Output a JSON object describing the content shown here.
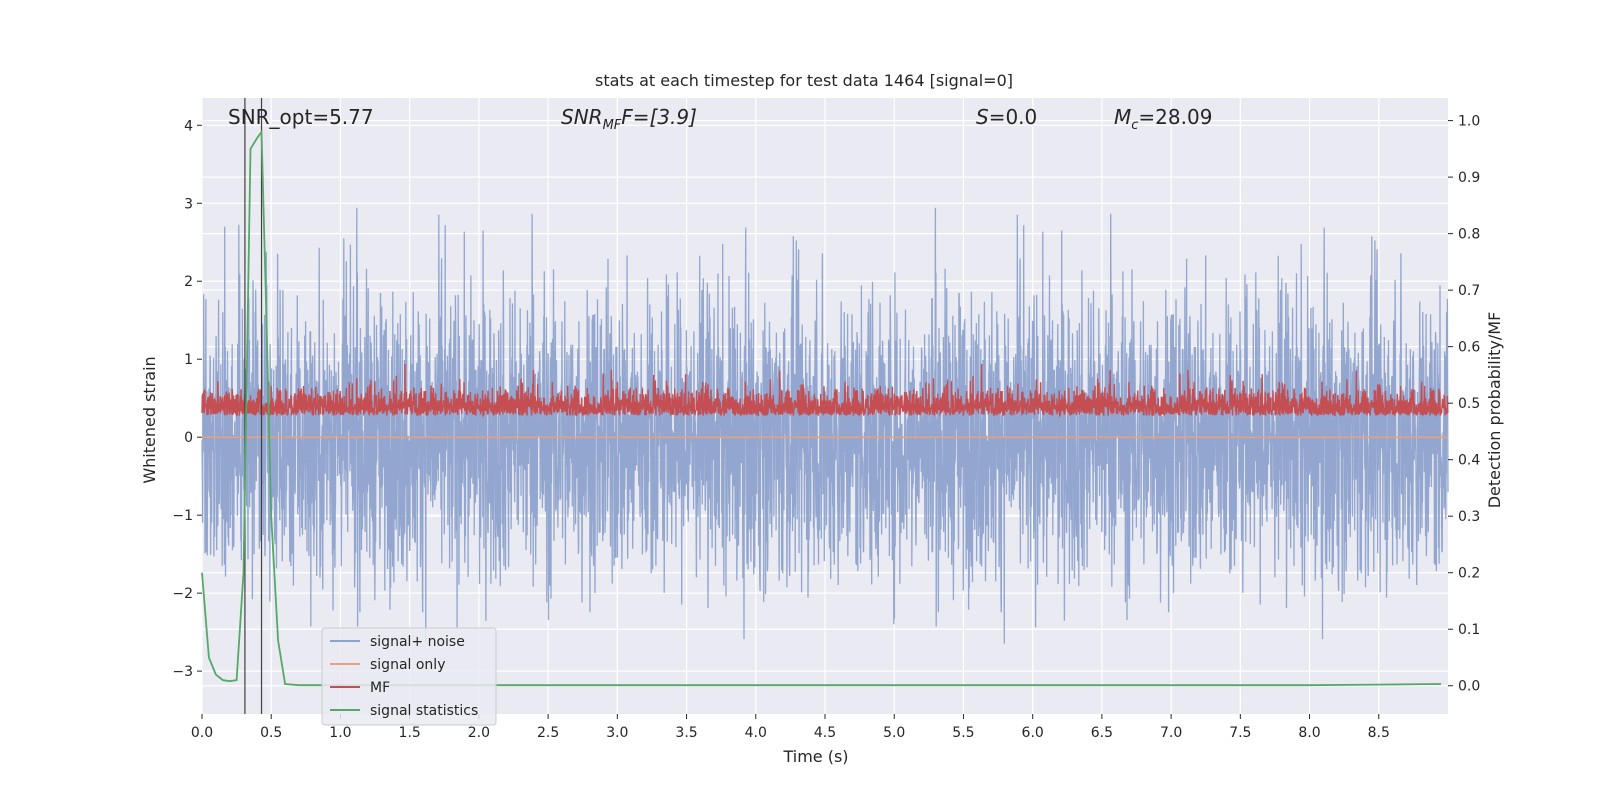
{
  "chart_data": {
    "type": "line",
    "title": "stats at each timestep for test data 1464 [signal=0]",
    "xlabel": "Time (s)",
    "ylabel_left": "Whitened strain",
    "ylabel_right": "Detection probability/MF",
    "xlim": [
      0.0,
      9.0
    ],
    "ylim_left": [
      -3.55,
      4.35
    ],
    "ylim_right": [
      -0.05,
      1.04
    ],
    "x_ticks": [
      "0.0",
      "0.5",
      "1.0",
      "1.5",
      "2.0",
      "2.5",
      "3.0",
      "3.5",
      "4.0",
      "4.5",
      "5.0",
      "5.5",
      "6.0",
      "6.5",
      "7.0",
      "7.5",
      "8.0",
      "8.5"
    ],
    "y_ticks_left": [
      "4",
      "3",
      "2",
      "1",
      "0",
      "−1",
      "−2",
      "−3"
    ],
    "y_ticks_right": [
      "1.0",
      "0.9",
      "0.8",
      "0.7",
      "0.6",
      "0.5",
      "0.4",
      "0.3",
      "0.2",
      "0.1",
      "0.0"
    ],
    "annotations": {
      "snr_opt": "SNR_opt=5.77",
      "snr_mf_base": "SNR",
      "snr_mf_sub": "MF",
      "snr_mf_tail": "F=[3.9]",
      "s_label": "S",
      "s_value": "=0.0",
      "mc_base": "M",
      "mc_sub": "c",
      "mc_value": "=28.09"
    },
    "vlines_x": [
      0.31,
      0.43
    ],
    "series": [
      {
        "name": "signal+ noise",
        "color": "#8da2cc",
        "axis": "left",
        "description": "noisy whitened strain, roughly -2.6 to 4.0"
      },
      {
        "name": "signal only",
        "color": "#e8a07e",
        "axis": "left",
        "values_constant": 0.0
      },
      {
        "name": "MF",
        "color": "#c44e52",
        "axis": "right",
        "description": "matched filter, roughly 0.45 to 0.58"
      },
      {
        "name": "signal statistics",
        "color": "#55a868",
        "axis": "right",
        "x": [
          0.0,
          0.05,
          0.1,
          0.15,
          0.2,
          0.25,
          0.3,
          0.35,
          0.4,
          0.43,
          0.46,
          0.5,
          0.55,
          0.6,
          0.7,
          1.0,
          2.0,
          3.0,
          4.0,
          5.0,
          6.0,
          7.0,
          8.0,
          8.5,
          8.95
        ],
        "values": [
          0.2,
          0.05,
          0.02,
          0.01,
          0.008,
          0.01,
          0.2,
          0.95,
          0.97,
          0.98,
          0.7,
          0.3,
          0.08,
          0.003,
          0.001,
          0.001,
          0.001,
          0.001,
          0.001,
          0.001,
          0.001,
          0.001,
          0.001,
          0.002,
          0.003
        ]
      }
    ],
    "legend": {
      "position": "lower-left",
      "entries": [
        "signal+ noise",
        "signal only",
        "MF",
        "signal statistics"
      ]
    },
    "grid": true
  }
}
